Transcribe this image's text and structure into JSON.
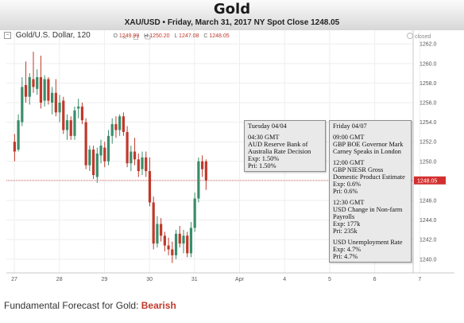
{
  "header": {
    "title": "Gold",
    "subtitle": "XAU/USD • Friday, March 31, 2017 NY  Spot Close 1248.05"
  },
  "toolbar": {
    "symbol_label": "Gold/U.S. Dollar, 120",
    "ohlc": {
      "o": "1249.99",
      "h": "1250.20",
      "l": "1247.08",
      "c": "1248.05"
    },
    "closed_label": "closed"
  },
  "colors": {
    "up": "#3a8d6a",
    "down": "#c0392b",
    "price_line": "#e07070",
    "price_tag": "#d32f2f",
    "grid": "#eeeeee"
  },
  "chart_data": {
    "type": "candlestick",
    "title": "Gold",
    "x_tick_labels": [
      "27",
      "28",
      "29",
      "30",
      "31",
      "Apr",
      "4",
      "5",
      "6",
      "7"
    ],
    "y_ticks": [
      1240.0,
      1242.0,
      1244.0,
      1246.0,
      1248.0,
      1250.0,
      1252.0,
      1254.0,
      1256.0,
      1258.0,
      1260.0,
      1262.0
    ],
    "ylim": [
      1238.6,
      1263.4
    ],
    "last_price": 1248.05,
    "last_price_label": "1248.05",
    "candles": [
      {
        "o": 1252.0,
        "h": 1252.8,
        "l": 1250.0,
        "c": 1251.0
      },
      {
        "o": 1251.2,
        "h": 1254.8,
        "l": 1251.0,
        "c": 1254.2
      },
      {
        "o": 1254.0,
        "h": 1258.6,
        "l": 1253.6,
        "c": 1257.6
      },
      {
        "o": 1257.8,
        "h": 1260.2,
        "l": 1256.0,
        "c": 1256.6
      },
      {
        "o": 1256.6,
        "h": 1259.0,
        "l": 1255.8,
        "c": 1258.6
      },
      {
        "o": 1258.4,
        "h": 1261.2,
        "l": 1257.0,
        "c": 1257.6
      },
      {
        "o": 1257.4,
        "h": 1259.4,
        "l": 1256.8,
        "c": 1258.6
      },
      {
        "o": 1258.6,
        "h": 1260.8,
        "l": 1255.4,
        "c": 1256.0
      },
      {
        "o": 1256.2,
        "h": 1258.8,
        "l": 1255.6,
        "c": 1258.4
      },
      {
        "o": 1258.4,
        "h": 1258.6,
        "l": 1255.8,
        "c": 1256.2
      },
      {
        "o": 1256.0,
        "h": 1257.6,
        "l": 1254.8,
        "c": 1257.0
      },
      {
        "o": 1257.0,
        "h": 1258.4,
        "l": 1254.6,
        "c": 1255.0
      },
      {
        "o": 1255.0,
        "h": 1256.8,
        "l": 1254.0,
        "c": 1256.0
      },
      {
        "o": 1256.2,
        "h": 1256.6,
        "l": 1252.8,
        "c": 1253.2
      },
      {
        "o": 1253.2,
        "h": 1254.8,
        "l": 1252.2,
        "c": 1254.2
      },
      {
        "o": 1254.2,
        "h": 1254.6,
        "l": 1252.2,
        "c": 1252.6
      },
      {
        "o": 1252.6,
        "h": 1255.6,
        "l": 1252.2,
        "c": 1255.2
      },
      {
        "o": 1255.4,
        "h": 1256.4,
        "l": 1254.4,
        "c": 1255.6
      },
      {
        "o": 1255.6,
        "h": 1256.0,
        "l": 1253.8,
        "c": 1254.2
      },
      {
        "o": 1254.0,
        "h": 1254.4,
        "l": 1249.2,
        "c": 1249.6
      },
      {
        "o": 1249.6,
        "h": 1251.6,
        "l": 1249.0,
        "c": 1251.2
      },
      {
        "o": 1251.2,
        "h": 1251.6,
        "l": 1248.2,
        "c": 1248.6
      },
      {
        "o": 1248.4,
        "h": 1251.4,
        "l": 1247.8,
        "c": 1250.8
      },
      {
        "o": 1250.6,
        "h": 1252.2,
        "l": 1249.8,
        "c": 1251.6
      },
      {
        "o": 1251.4,
        "h": 1252.0,
        "l": 1249.4,
        "c": 1250.0
      },
      {
        "o": 1250.0,
        "h": 1253.2,
        "l": 1249.6,
        "c": 1252.6
      },
      {
        "o": 1252.6,
        "h": 1254.4,
        "l": 1251.8,
        "c": 1253.8
      },
      {
        "o": 1253.8,
        "h": 1254.6,
        "l": 1252.4,
        "c": 1253.2
      },
      {
        "o": 1253.2,
        "h": 1254.8,
        "l": 1252.6,
        "c": 1254.6
      },
      {
        "o": 1254.6,
        "h": 1255.0,
        "l": 1252.6,
        "c": 1253.0
      },
      {
        "o": 1253.0,
        "h": 1253.6,
        "l": 1249.4,
        "c": 1249.8
      },
      {
        "o": 1249.8,
        "h": 1251.6,
        "l": 1249.0,
        "c": 1251.0
      },
      {
        "o": 1251.0,
        "h": 1252.4,
        "l": 1249.6,
        "c": 1250.2
      },
      {
        "o": 1250.2,
        "h": 1250.8,
        "l": 1248.4,
        "c": 1249.0
      },
      {
        "o": 1249.2,
        "h": 1251.0,
        "l": 1248.6,
        "c": 1250.4
      },
      {
        "o": 1250.4,
        "h": 1251.0,
        "l": 1248.4,
        "c": 1249.0
      },
      {
        "o": 1249.0,
        "h": 1250.4,
        "l": 1245.4,
        "c": 1245.8
      },
      {
        "o": 1245.8,
        "h": 1246.4,
        "l": 1241.0,
        "c": 1241.6
      },
      {
        "o": 1241.6,
        "h": 1244.4,
        "l": 1241.2,
        "c": 1243.6
      },
      {
        "o": 1243.6,
        "h": 1244.2,
        "l": 1241.8,
        "c": 1242.4
      },
      {
        "o": 1242.4,
        "h": 1242.8,
        "l": 1240.8,
        "c": 1241.4
      },
      {
        "o": 1241.4,
        "h": 1242.2,
        "l": 1240.4,
        "c": 1241.0
      },
      {
        "o": 1241.0,
        "h": 1241.8,
        "l": 1239.6,
        "c": 1240.4
      },
      {
        "o": 1240.4,
        "h": 1243.0,
        "l": 1240.0,
        "c": 1242.6
      },
      {
        "o": 1242.6,
        "h": 1243.4,
        "l": 1241.2,
        "c": 1241.6
      },
      {
        "o": 1241.6,
        "h": 1243.0,
        "l": 1240.6,
        "c": 1242.4
      },
      {
        "o": 1242.4,
        "h": 1242.8,
        "l": 1240.2,
        "c": 1240.6
      },
      {
        "o": 1240.6,
        "h": 1243.8,
        "l": 1240.2,
        "c": 1243.2
      },
      {
        "o": 1243.2,
        "h": 1246.8,
        "l": 1242.8,
        "c": 1246.2
      },
      {
        "o": 1246.2,
        "h": 1250.4,
        "l": 1245.8,
        "c": 1250.0
      },
      {
        "o": 1250.0,
        "h": 1250.6,
        "l": 1248.4,
        "c": 1249.2
      },
      {
        "o": 1249.99,
        "h": 1250.2,
        "l": 1247.08,
        "c": 1248.05
      }
    ]
  },
  "events": [
    {
      "day": "Tuesday 04/04",
      "items": [
        {
          "lines": [
            "04:30 GMT",
            "AUD Reserve Bank of",
            "Australia Rate Decision",
            "Exp: 1.50%",
            "Pri: 1.50%"
          ]
        }
      ]
    },
    {
      "day": "Friday 04/07",
      "items": [
        {
          "lines": [
            "09:00 GMT",
            "GBP BOE Governor Mark",
            "Carney Speaks in London"
          ]
        },
        {
          "lines": [
            "12:00 GMT",
            "GBP NIESR Gross",
            "Domestic Product Estimate",
            "Exp: 0.6%",
            "Pri: 0.6%"
          ]
        },
        {
          "lines": [
            "12:30 GMT",
            "USD Change in Non-farm",
            "Payrolls",
            "Exp: 177k",
            "Pri: 235k"
          ]
        },
        {
          "lines": [
            "USD Unemployment Rate",
            "Exp: 4.7%",
            "Pri: 4.7%"
          ]
        }
      ]
    }
  ],
  "footer": {
    "prefix": "Fundamental Forecast for Gold: ",
    "verdict": "Bearish"
  }
}
